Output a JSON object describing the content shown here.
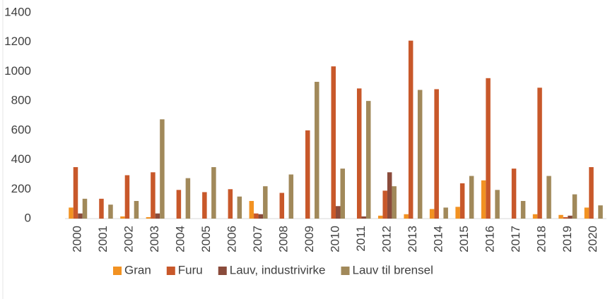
{
  "chart_data": {
    "type": "bar",
    "categories": [
      "2000",
      "2001",
      "2002",
      "2003",
      "2004",
      "2005",
      "2006",
      "2007",
      "2008",
      "2009",
      "2010",
      "2011",
      "2012",
      "2013",
      "2014",
      "2015",
      "2016",
      "2017",
      "2018",
      "2019",
      "2020"
    ],
    "series": [
      {
        "name": "Gran",
        "color": "#f29222",
        "values": [
          75,
          0,
          15,
          10,
          0,
          0,
          0,
          120,
          0,
          0,
          0,
          0,
          20,
          30,
          65,
          80,
          260,
          0,
          30,
          25,
          75
        ]
      },
      {
        "name": "Furu",
        "color": "#c8582a",
        "values": [
          350,
          135,
          295,
          315,
          195,
          180,
          200,
          35,
          175,
          600,
          1035,
          885,
          190,
          1210,
          880,
          240,
          955,
          340,
          890,
          10,
          350
        ]
      },
      {
        "name": "Lauv, industrivirke",
        "color": "#8a4b3b",
        "values": [
          35,
          0,
          0,
          35,
          0,
          0,
          0,
          30,
          0,
          0,
          85,
          15,
          315,
          0,
          0,
          0,
          0,
          0,
          0,
          20,
          0
        ]
      },
      {
        "name": "Lauv til brensel",
        "color": "#a1895a",
        "values": [
          135,
          95,
          120,
          675,
          275,
          350,
          150,
          220,
          300,
          930,
          340,
          800,
          220,
          875,
          75,
          290,
          195,
          120,
          290,
          165,
          90
        ]
      }
    ],
    "ylim": [
      0,
      1400
    ],
    "yticks": [
      0,
      200,
      400,
      600,
      800,
      1000,
      1200,
      1400
    ],
    "legend": "bottom"
  }
}
